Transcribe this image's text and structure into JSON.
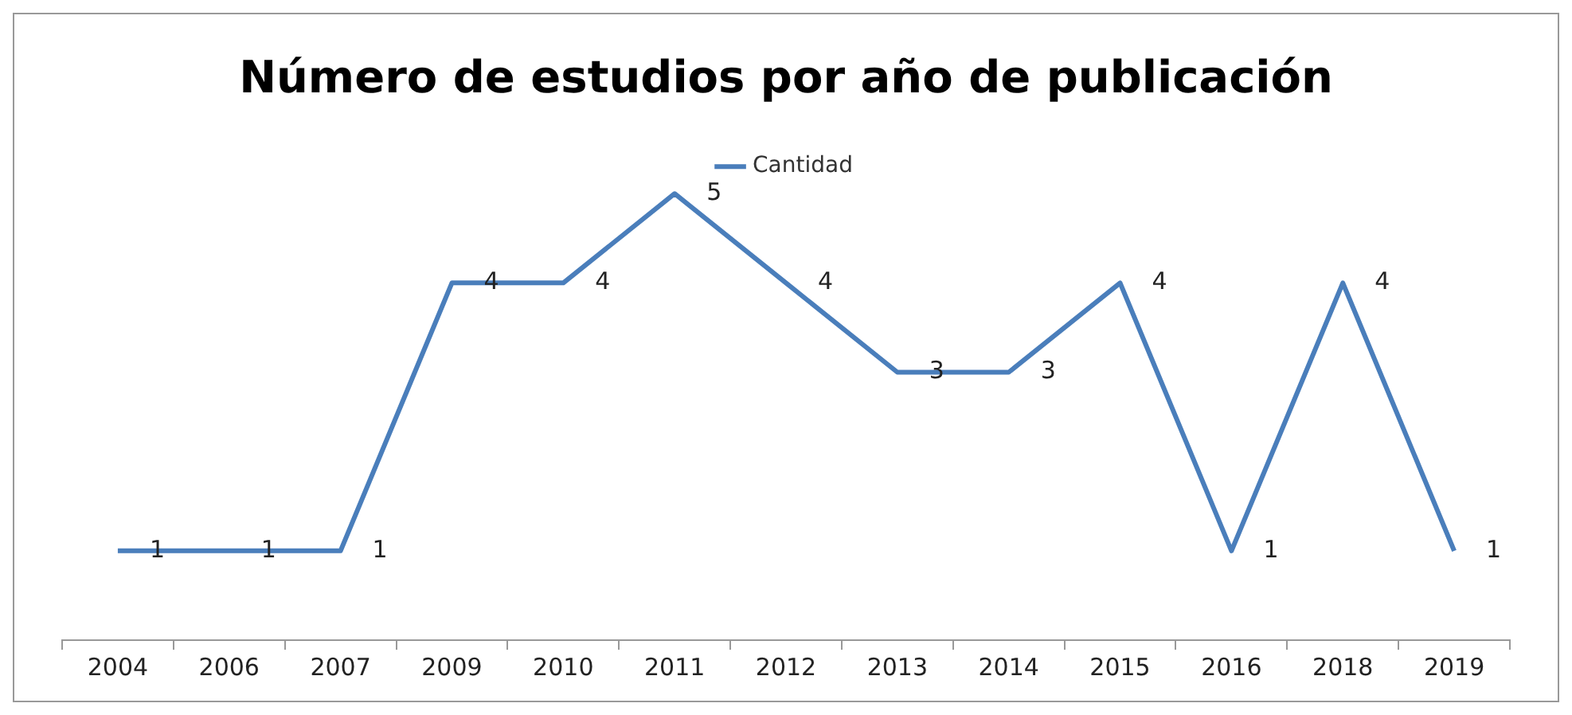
{
  "chart_data": {
    "type": "line",
    "title": "Número de estudios por año de publicación",
    "categories": [
      "2004",
      "2006",
      "2007",
      "2009",
      "2010",
      "2011",
      "2012",
      "2013",
      "2014",
      "2015",
      "2016",
      "2018",
      "2019"
    ],
    "series": [
      {
        "name": "Cantidad",
        "color": "#4a7ebb",
        "values": [
          1,
          1,
          1,
          4,
          4,
          5,
          4,
          3,
          3,
          4,
          1,
          4,
          1
        ]
      }
    ],
    "data_labels": true,
    "legend": "top",
    "marker": "none",
    "line_style": "solid",
    "grid": false,
    "tick_labels": "x"
  }
}
